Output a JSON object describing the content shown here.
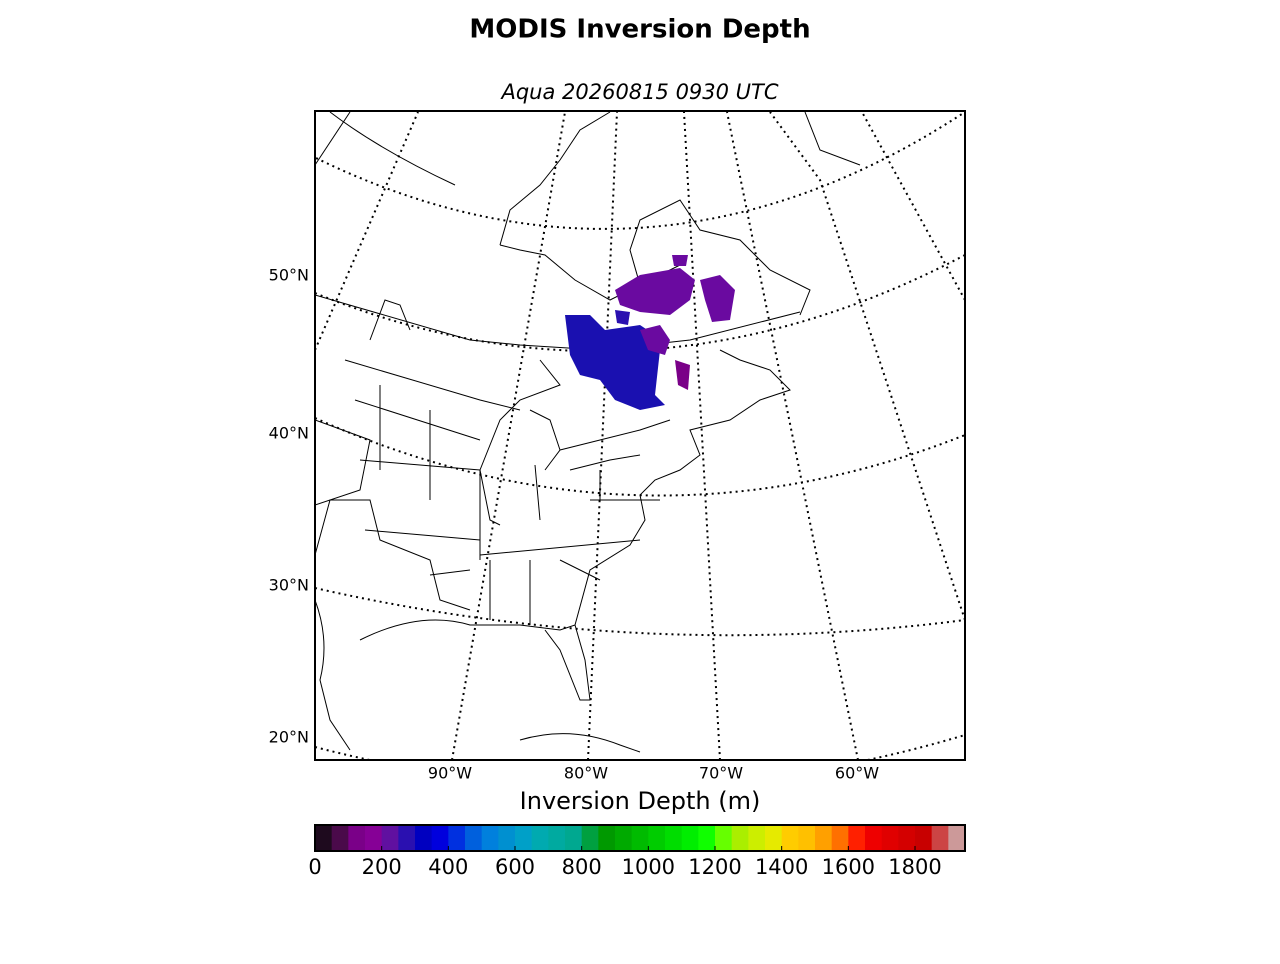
{
  "title": "MODIS Inversion Depth",
  "map": {
    "subtitle": "Aqua 20260815 0930 UTC",
    "lat_labels": [
      "50°N",
      "40°N",
      "30°N",
      "20°N"
    ],
    "lon_labels": [
      "90°W",
      "80°W",
      "70°W",
      "60°W"
    ]
  },
  "colorbar": {
    "label": "Inversion Depth (m)",
    "lim": [
      0,
      1950
    ],
    "ticks": [
      0,
      200,
      400,
      600,
      800,
      1000,
      1200,
      1400,
      1600,
      1800
    ],
    "colors": [
      "#1e0a1e",
      "#4a0a4a",
      "#7a0088",
      "#860096",
      "#6010a0",
      "#2a10b0",
      "#0000c0",
      "#0000dd",
      "#0030e0",
      "#0060dd",
      "#0080dd",
      "#0090d0",
      "#00a0c8",
      "#00aab0",
      "#00aaa0",
      "#00a890",
      "#00a040",
      "#009900",
      "#00aa00",
      "#00bb00",
      "#00cc00",
      "#00dd00",
      "#00ee00",
      "#10ff00",
      "#66ff00",
      "#aaee00",
      "#ccee00",
      "#e6ea00",
      "#ffcc00",
      "#ffc000",
      "#ffa000",
      "#ff7000",
      "#ff2000",
      "#ee0000",
      "#e00000",
      "#d40000",
      "#c80000",
      "#cc4444",
      "#cc9999"
    ]
  }
}
